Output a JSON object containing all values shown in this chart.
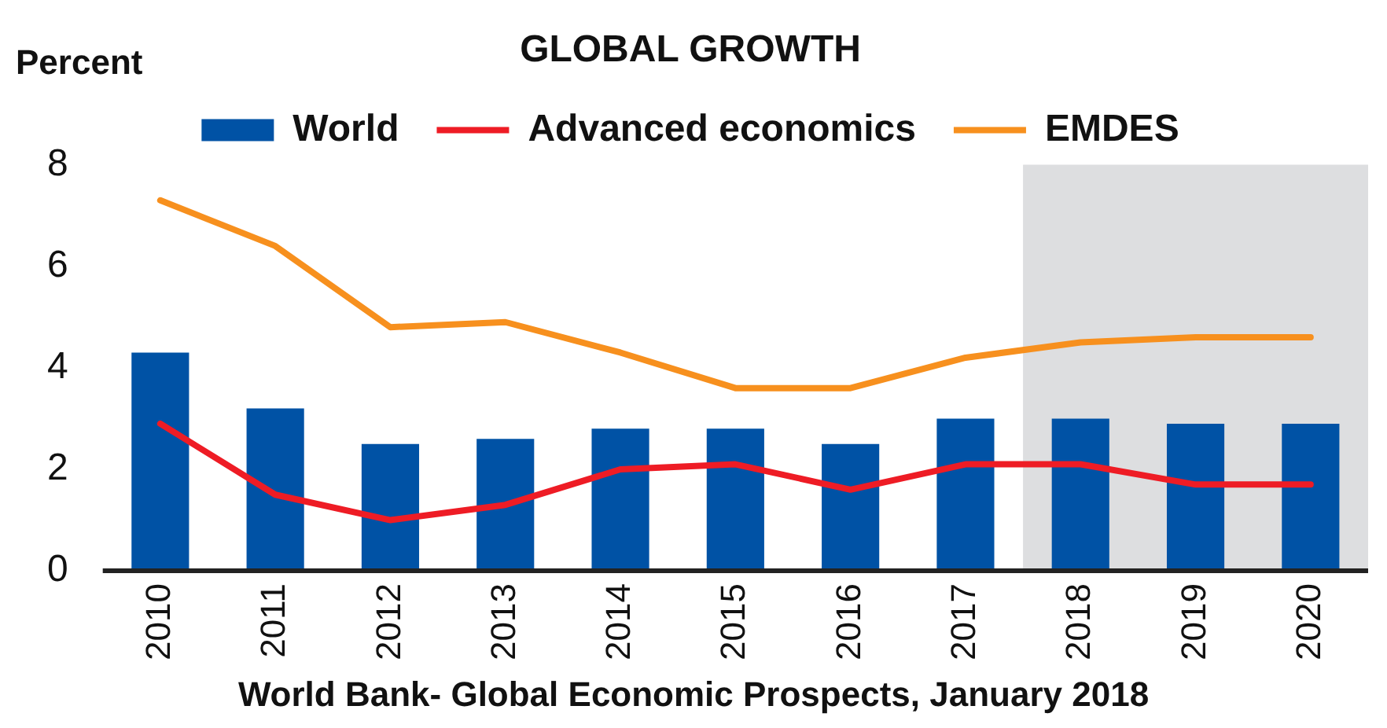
{
  "chart_data": {
    "type": "bar",
    "title": "GLOBAL GROWTH",
    "ylabel": "Percent",
    "categories": [
      "2010",
      "2011",
      "2012",
      "2013",
      "2014",
      "2015",
      "2016",
      "2017",
      "2018",
      "2019",
      "2020"
    ],
    "series": [
      {
        "name": "World",
        "color": "#0052a5",
        "values": [
          4.3,
          3.2,
          2.5,
          2.6,
          2.8,
          2.8,
          2.5,
          3.0,
          3.0,
          2.9,
          2.9
        ]
      },
      {
        "name": "Advanced economics",
        "type": "line",
        "color": "#ee1c25",
        "values": [
          2.9,
          1.5,
          1.0,
          1.3,
          2.0,
          2.1,
          1.6,
          2.1,
          2.1,
          1.7,
          1.7
        ]
      },
      {
        "name": "EMDES",
        "type": "line",
        "color": "#f7901e",
        "values": [
          7.3,
          6.4,
          4.8,
          4.9,
          4.3,
          3.6,
          3.6,
          4.2,
          4.5,
          4.6,
          4.6
        ]
      }
    ],
    "ylim": [
      0,
      8
    ],
    "yticks": [
      0,
      2,
      4,
      6,
      8
    ],
    "grid": false,
    "legend": "top",
    "marker": "none",
    "bands": [
      {
        "axis": "x",
        "from": "2018",
        "to": "2020",
        "color": "#dddee0"
      }
    ],
    "annotations": [
      "World Bank- Global Economic Prospects, January 2018"
    ]
  }
}
